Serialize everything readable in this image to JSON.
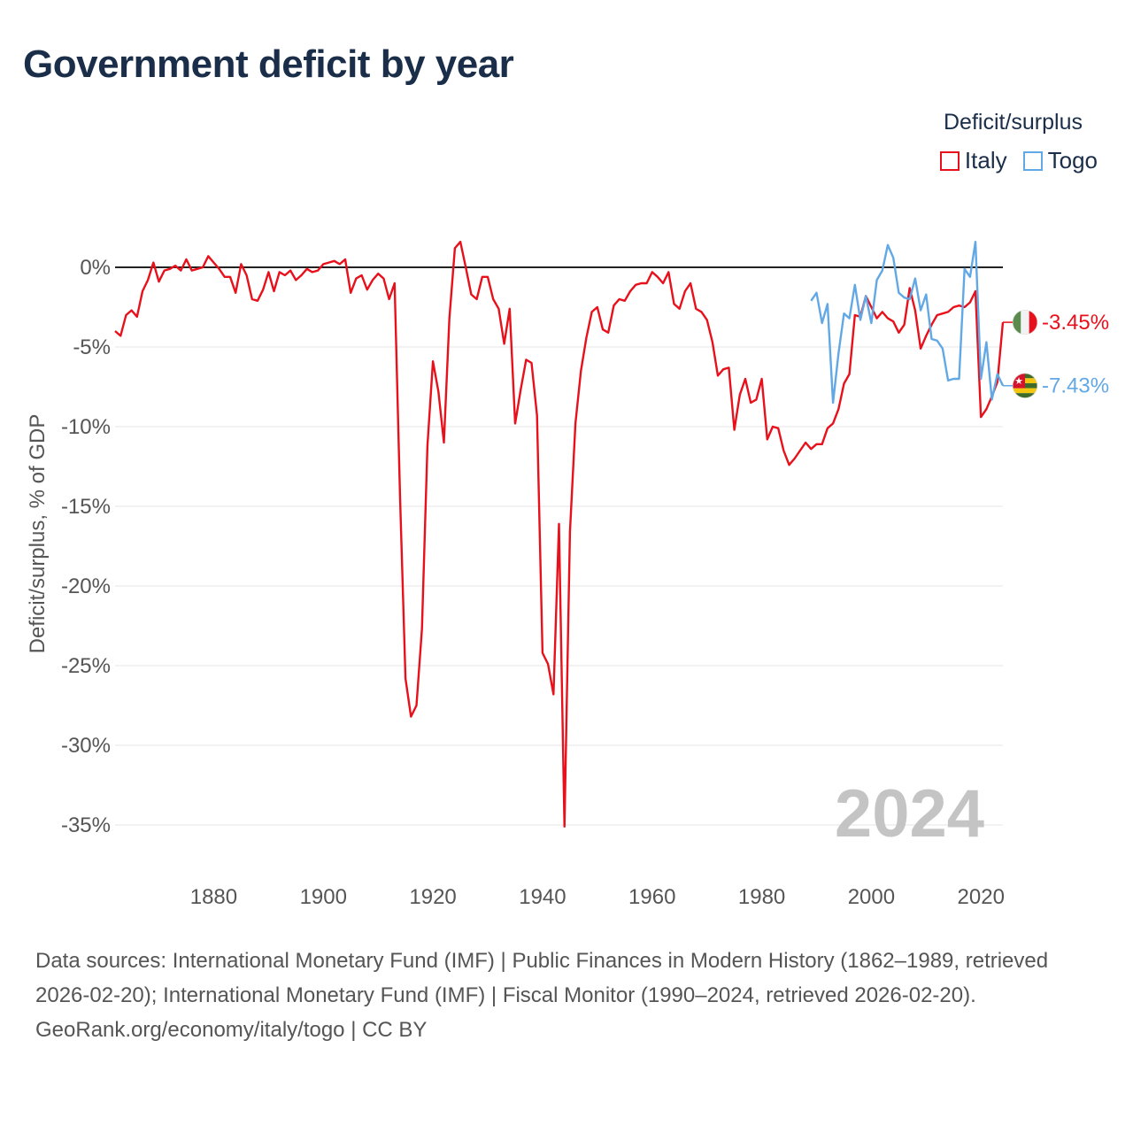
{
  "title": "Government deficit by year",
  "legend": {
    "title": "Deficit/surplus",
    "items": [
      {
        "name": "Italy",
        "color": "#e8101a"
      },
      {
        "name": "Togo",
        "color": "#62a8e5"
      }
    ]
  },
  "chart_data": {
    "type": "line",
    "title": "Government deficit by year",
    "xlabel": "",
    "ylabel": "Deficit/surplus, % of GDP",
    "xlim": [
      1862,
      2024
    ],
    "ylim": [
      -35,
      0
    ],
    "x_ticks": [
      1880,
      1900,
      1920,
      1940,
      1960,
      1980,
      2000,
      2020
    ],
    "y_ticks": [
      0,
      -5,
      -10,
      -15,
      -20,
      -25,
      -30,
      -35
    ],
    "y_tick_labels": [
      "0%",
      "-5%",
      "-10%",
      "-15%",
      "-20%",
      "-25%",
      "-30%",
      "-35%"
    ],
    "watermark_year": "2024",
    "series": [
      {
        "name": "Italy",
        "color": "#e8101a",
        "end_label": "-3.45%",
        "x": [
          1862,
          1863,
          1864,
          1865,
          1866,
          1867,
          1868,
          1869,
          1870,
          1871,
          1872,
          1873,
          1874,
          1875,
          1876,
          1877,
          1878,
          1879,
          1880,
          1881,
          1882,
          1883,
          1884,
          1885,
          1886,
          1887,
          1888,
          1889,
          1890,
          1891,
          1892,
          1893,
          1894,
          1895,
          1896,
          1897,
          1898,
          1899,
          1900,
          1901,
          1902,
          1903,
          1904,
          1905,
          1906,
          1907,
          1908,
          1909,
          1910,
          1911,
          1912,
          1913,
          1914,
          1915,
          1916,
          1917,
          1918,
          1919,
          1920,
          1921,
          1922,
          1923,
          1924,
          1925,
          1926,
          1927,
          1928,
          1929,
          1930,
          1931,
          1932,
          1933,
          1934,
          1935,
          1936,
          1937,
          1938,
          1939,
          1940,
          1941,
          1942,
          1943,
          1944,
          1945,
          1946,
          1947,
          1948,
          1949,
          1950,
          1951,
          1952,
          1953,
          1954,
          1955,
          1956,
          1957,
          1958,
          1959,
          1960,
          1961,
          1962,
          1963,
          1964,
          1965,
          1966,
          1967,
          1968,
          1969,
          1970,
          1971,
          1972,
          1973,
          1974,
          1975,
          1976,
          1977,
          1978,
          1979,
          1980,
          1981,
          1982,
          1983,
          1984,
          1985,
          1986,
          1987,
          1988,
          1989,
          1990,
          1991,
          1992,
          1993,
          1994,
          1995,
          1996,
          1997,
          1998,
          1999,
          2000,
          2001,
          2002,
          2003,
          2004,
          2005,
          2006,
          2007,
          2008,
          2009,
          2010,
          2011,
          2012,
          2013,
          2014,
          2015,
          2016,
          2017,
          2018,
          2019,
          2020,
          2021,
          2022,
          2023,
          2024
        ],
        "y": [
          -4.0,
          -4.3,
          -3.0,
          -2.7,
          -3.1,
          -1.5,
          -0.8,
          0.3,
          -0.9,
          -0.2,
          -0.1,
          0.1,
          -0.2,
          0.5,
          -0.2,
          -0.1,
          0.0,
          0.7,
          0.3,
          -0.1,
          -0.6,
          -0.6,
          -1.6,
          0.2,
          -0.5,
          -2.0,
          -2.1,
          -1.4,
          -0.3,
          -1.5,
          -0.3,
          -0.5,
          -0.2,
          -0.8,
          -0.5,
          -0.1,
          -0.3,
          -0.2,
          0.2,
          0.3,
          0.4,
          0.2,
          0.5,
          -1.6,
          -0.7,
          -0.5,
          -1.4,
          -0.8,
          -0.4,
          -0.7,
          -2.0,
          -1.0,
          -14.5,
          -25.8,
          -28.2,
          -27.5,
          -22.7,
          -11.2,
          -5.9,
          -7.8,
          -11.0,
          -3.2,
          1.2,
          1.6,
          0.0,
          -1.7,
          -2.0,
          -0.6,
          -0.6,
          -2.0,
          -2.6,
          -4.8,
          -2.6,
          -9.8,
          -7.7,
          -5.8,
          -6.0,
          -9.3,
          -24.2,
          -24.9,
          -26.8,
          -16.1,
          -35.1,
          -16.6,
          -9.8,
          -6.5,
          -4.4,
          -2.8,
          -2.5,
          -3.9,
          -4.1,
          -2.4,
          -2.0,
          -2.1,
          -1.5,
          -1.1,
          -1.0,
          -1.0,
          -0.3,
          -0.6,
          -1.0,
          -0.3,
          -2.3,
          -2.6,
          -1.5,
          -1.0,
          -2.6,
          -2.8,
          -3.3,
          -4.7,
          -6.8,
          -6.4,
          -6.3,
          -10.2,
          -8.0,
          -7.0,
          -8.5,
          -8.3,
          -7.0,
          -10.8,
          -10.0,
          -10.1,
          -11.5,
          -12.4,
          -12.0,
          -11.5,
          -11.0,
          -11.4,
          -11.1,
          -11.1,
          -10.1,
          -9.8,
          -8.9,
          -7.3,
          -6.7,
          -3.0,
          -3.1,
          -1.8,
          -2.5,
          -3.2,
          -2.8,
          -3.2,
          -3.4,
          -4.1,
          -3.6,
          -1.3,
          -2.7,
          -5.1,
          -4.3,
          -3.6,
          -3.0,
          -2.9,
          -2.8,
          -2.5,
          -2.4,
          -2.5,
          -2.2,
          -1.5,
          -9.4,
          -8.9,
          -8.1,
          -7.2,
          -3.45
        ]
      },
      {
        "name": "Togo",
        "color": "#62a8e5",
        "end_label": "-7.43%",
        "x": [
          1989,
          1990,
          1991,
          1992,
          1993,
          1994,
          1995,
          1996,
          1997,
          1998,
          1999,
          2000,
          2001,
          2002,
          2003,
          2004,
          2005,
          2006,
          2007,
          2008,
          2009,
          2010,
          2011,
          2012,
          2013,
          2014,
          2015,
          2016,
          2017,
          2018,
          2019,
          2020,
          2021,
          2022,
          2023,
          2024
        ],
        "y": [
          -2.1,
          -1.6,
          -3.5,
          -2.3,
          -8.5,
          -5.4,
          -2.9,
          -3.2,
          -1.1,
          -3.3,
          -1.8,
          -3.5,
          -0.8,
          -0.2,
          1.4,
          0.6,
          -1.6,
          -1.9,
          -2.0,
          -0.7,
          -2.7,
          -1.7,
          -4.5,
          -4.6,
          -5.1,
          -7.1,
          -7.0,
          -7.0,
          -0.1,
          -0.6,
          1.6,
          -7.0,
          -4.7,
          -8.3,
          -6.7,
          -7.43
        ]
      }
    ]
  },
  "footer": {
    "sources": "Data sources: International Monetary Fund (IMF) | Public Finances in Modern History (1862–1989, retrieved 2026-02-20); International Monetary Fund (IMF) | Fiscal Monitor (1990–2024, retrieved 2026-02-20).",
    "credit": "GeoRank.org/economy/italy/togo | CC BY"
  }
}
